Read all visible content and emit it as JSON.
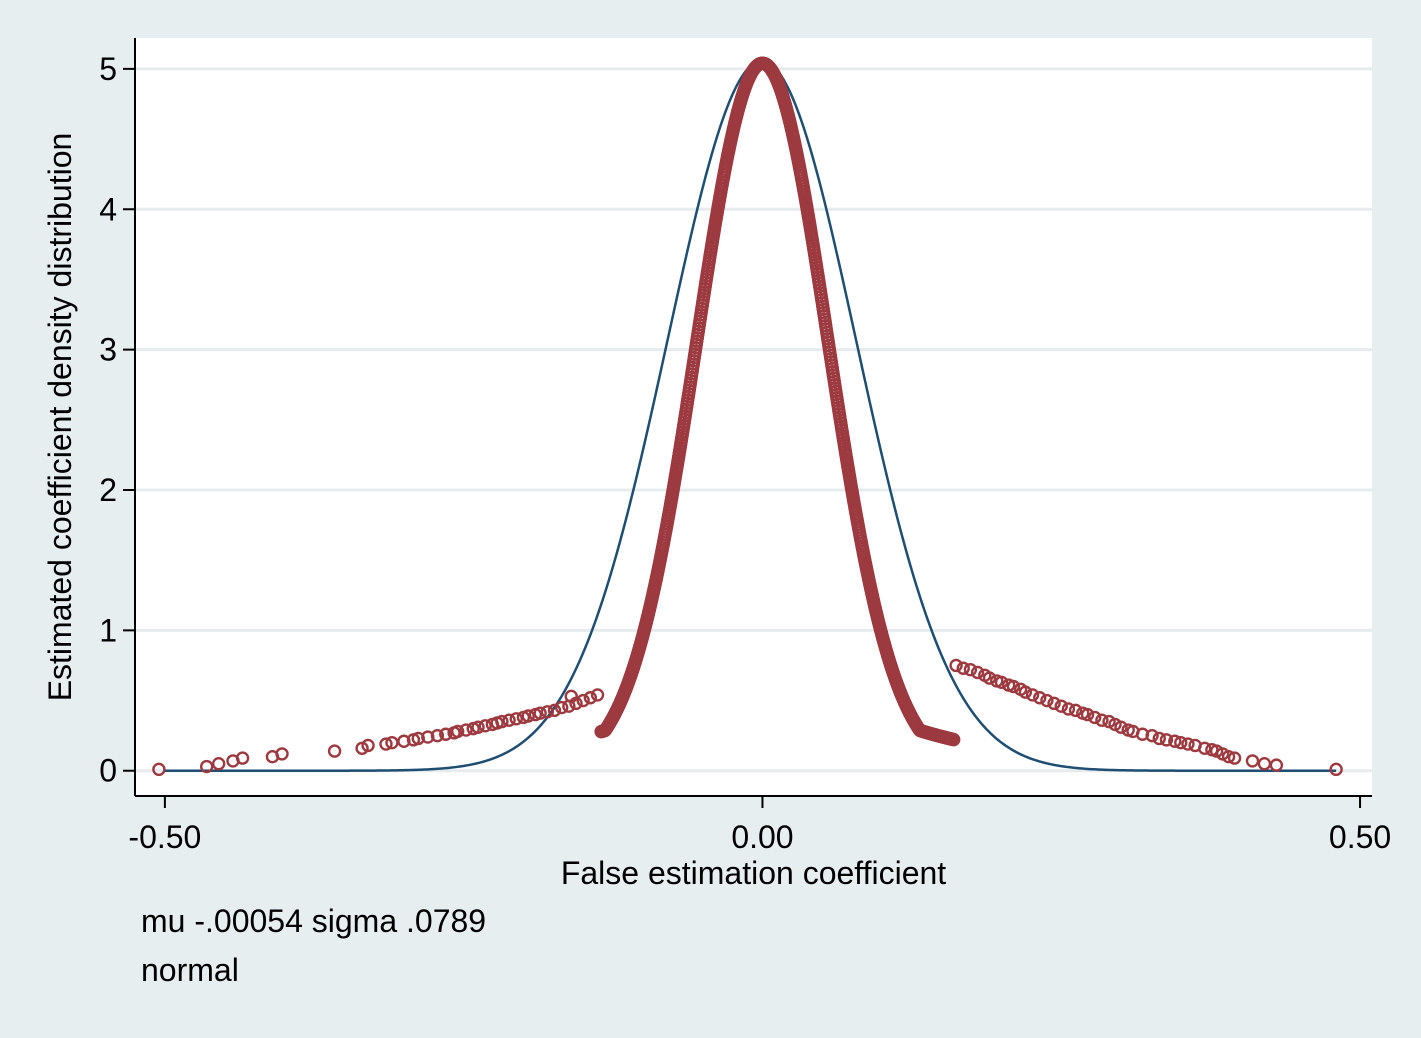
{
  "chart_data": {
    "type": "scatter",
    "title": "",
    "xlabel": "False estimation coefficient",
    "ylabel": "Estimated coefficient density distribution",
    "xlim": [
      -0.525,
      0.51
    ],
    "ylim": [
      -0.18,
      5.22
    ],
    "x_ticks": [
      -0.5,
      0.0,
      0.5
    ],
    "x_tick_labels": [
      "-0.50",
      "0.00",
      "0.50"
    ],
    "y_ticks": [
      0,
      1,
      2,
      3,
      4,
      5
    ],
    "y_tick_labels": [
      "0",
      "1",
      "2",
      "3",
      "4",
      "5"
    ],
    "grid": "horizontal",
    "notes": [
      "mu -.00054 sigma .0789",
      "normal"
    ],
    "normal_curve": {
      "mu": -0.00054,
      "sigma": 0.0789,
      "color": "#1f4e72"
    },
    "density_points": {
      "color": "#9c3a40",
      "kernel_sigma_core": 0.055,
      "tail_points": [
        [
          -0.505,
          0.01
        ],
        [
          -0.465,
          0.03
        ],
        [
          -0.455,
          0.05
        ],
        [
          -0.443,
          0.07
        ],
        [
          -0.435,
          0.09
        ],
        [
          -0.41,
          0.1
        ],
        [
          -0.402,
          0.12
        ],
        [
          -0.358,
          0.14
        ],
        [
          -0.335,
          0.16
        ],
        [
          -0.33,
          0.18
        ],
        [
          -0.315,
          0.19
        ],
        [
          -0.31,
          0.2
        ],
        [
          -0.3,
          0.21
        ],
        [
          -0.292,
          0.22
        ],
        [
          -0.288,
          0.23
        ],
        [
          -0.28,
          0.24
        ],
        [
          -0.272,
          0.25
        ],
        [
          -0.265,
          0.26
        ],
        [
          -0.258,
          0.27
        ],
        [
          -0.255,
          0.28
        ],
        [
          -0.248,
          0.29
        ],
        [
          -0.242,
          0.3
        ],
        [
          -0.238,
          0.31
        ],
        [
          -0.232,
          0.32
        ],
        [
          -0.226,
          0.33
        ],
        [
          -0.222,
          0.34
        ],
        [
          -0.218,
          0.35
        ],
        [
          -0.212,
          0.36
        ],
        [
          -0.206,
          0.37
        ],
        [
          -0.2,
          0.38
        ],
        [
          -0.196,
          0.39
        ],
        [
          -0.19,
          0.4
        ],
        [
          -0.186,
          0.41
        ],
        [
          -0.18,
          0.42
        ],
        [
          -0.174,
          0.43
        ],
        [
          -0.168,
          0.45
        ],
        [
          -0.162,
          0.46
        ],
        [
          -0.156,
          0.48
        ],
        [
          -0.15,
          0.5
        ],
        [
          -0.144,
          0.52
        ],
        [
          -0.138,
          0.54
        ],
        [
          -0.16,
          0.53
        ],
        [
          0.162,
          0.75
        ],
        [
          0.168,
          0.73
        ],
        [
          0.174,
          0.72
        ],
        [
          0.18,
          0.7
        ],
        [
          0.186,
          0.68
        ],
        [
          0.19,
          0.66
        ],
        [
          0.196,
          0.64
        ],
        [
          0.2,
          0.63
        ],
        [
          0.206,
          0.61
        ],
        [
          0.21,
          0.6
        ],
        [
          0.216,
          0.58
        ],
        [
          0.22,
          0.56
        ],
        [
          0.226,
          0.54
        ],
        [
          0.232,
          0.52
        ],
        [
          0.238,
          0.5
        ],
        [
          0.244,
          0.48
        ],
        [
          0.25,
          0.46
        ],
        [
          0.256,
          0.44
        ],
        [
          0.262,
          0.43
        ],
        [
          0.268,
          0.41
        ],
        [
          0.272,
          0.4
        ],
        [
          0.278,
          0.38
        ],
        [
          0.284,
          0.36
        ],
        [
          0.29,
          0.35
        ],
        [
          0.295,
          0.33
        ],
        [
          0.3,
          0.31
        ],
        [
          0.306,
          0.29
        ],
        [
          0.31,
          0.28
        ],
        [
          0.318,
          0.26
        ],
        [
          0.326,
          0.25
        ],
        [
          0.332,
          0.23
        ],
        [
          0.338,
          0.22
        ],
        [
          0.345,
          0.21
        ],
        [
          0.35,
          0.2
        ],
        [
          0.356,
          0.19
        ],
        [
          0.362,
          0.18
        ],
        [
          0.37,
          0.16
        ],
        [
          0.376,
          0.15
        ],
        [
          0.38,
          0.14
        ],
        [
          0.385,
          0.12
        ],
        [
          0.39,
          0.1
        ],
        [
          0.395,
          0.09
        ],
        [
          0.41,
          0.07
        ],
        [
          0.42,
          0.05
        ],
        [
          0.43,
          0.04
        ],
        [
          0.48,
          0.01
        ]
      ]
    }
  }
}
